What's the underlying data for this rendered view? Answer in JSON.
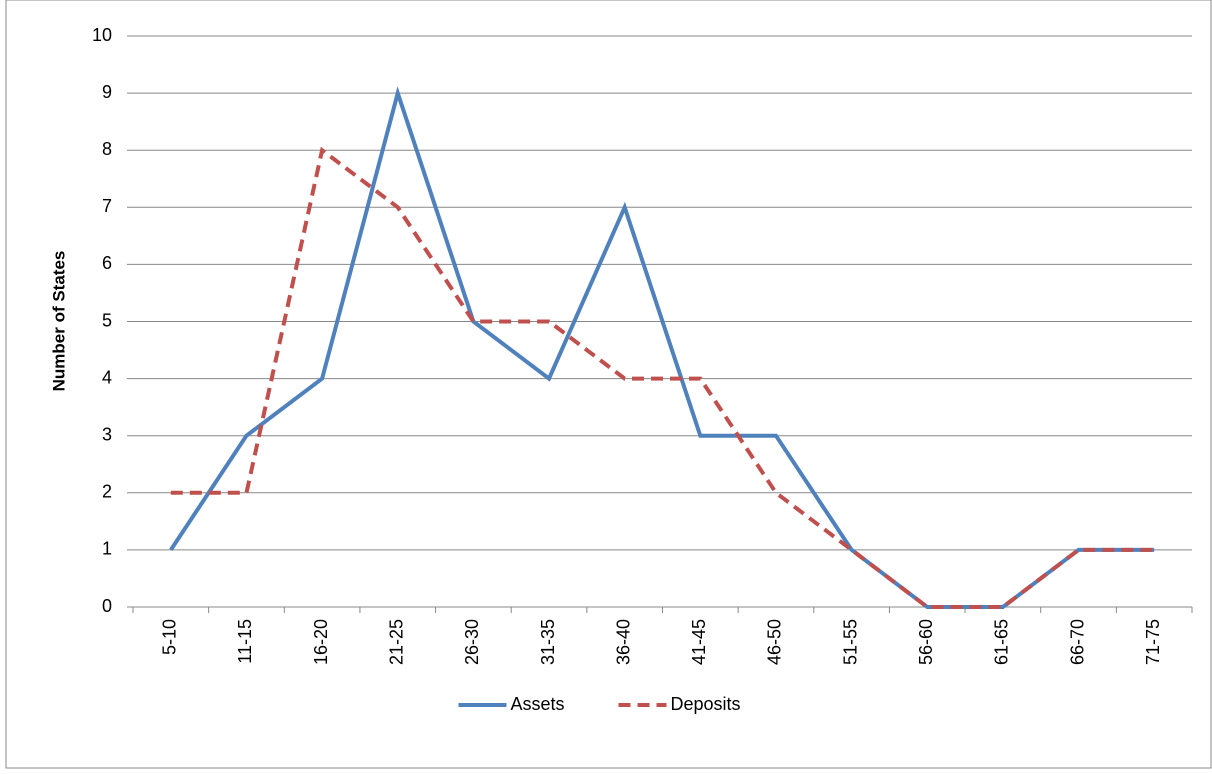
{
  "chart_data": {
    "type": "line",
    "y_label": "Number of States",
    "categories": [
      "5-10",
      "11-15",
      "16-20",
      "21-25",
      "26-30",
      "31-35",
      "36-40",
      "41-45",
      "46-50",
      "51-55",
      "56-60",
      "61-65",
      "66-70",
      "71-75"
    ],
    "series": [
      {
        "name": "Assets",
        "color": "#4f81bd",
        "dash": false,
        "values": [
          1,
          3,
          4,
          9,
          5,
          4,
          7,
          3,
          3,
          1,
          0,
          0,
          1,
          1
        ]
      },
      {
        "name": "Deposits",
        "color": "#c0504d",
        "dash": true,
        "values": [
          2,
          2,
          8,
          7,
          5,
          5,
          4,
          4,
          2,
          1,
          0,
          0,
          1,
          1
        ]
      }
    ],
    "ylim": [
      0,
      10
    ],
    "yticks": [
      0,
      1,
      2,
      3,
      4,
      5,
      6,
      7,
      8,
      9,
      10
    ],
    "grid": true,
    "legend": "bottom"
  }
}
